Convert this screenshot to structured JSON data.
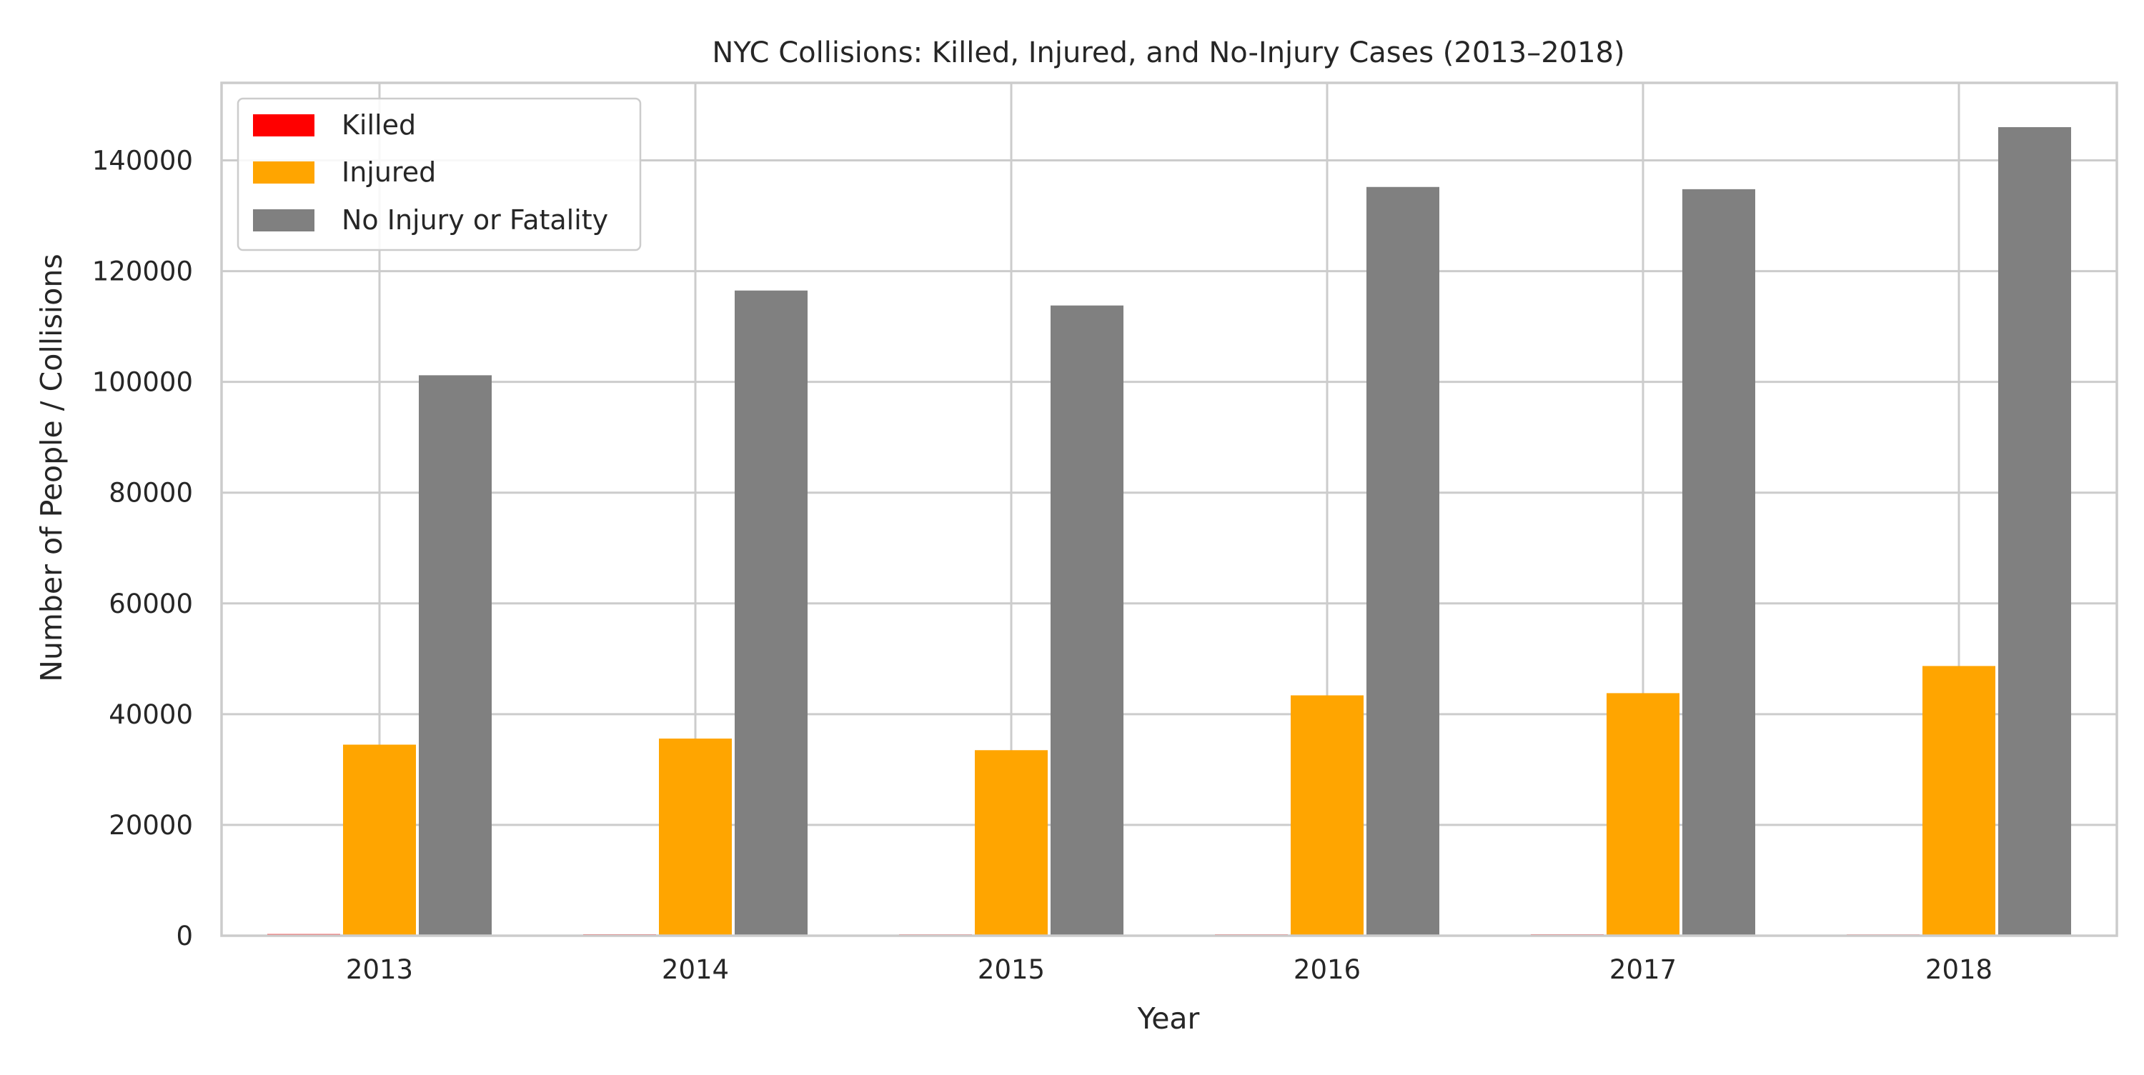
{
  "chart_data": {
    "type": "bar",
    "title": "NYC Collisions: Killed, Injured, and No-Injury Cases (2013–2018)",
    "xlabel": "Year",
    "ylabel": "Number of People / Collisions",
    "categories": [
      "2013",
      "2014",
      "2015",
      "2016",
      "2017",
      "2018"
    ],
    "series": [
      {
        "name": "Killed",
        "color": "#ff0000",
        "values": [
          297,
          262,
          243,
          246,
          256,
          231
        ]
      },
      {
        "name": "Injured",
        "color": "#ffa500",
        "values": [
          34500,
          35600,
          33500,
          43400,
          43800,
          48700
        ]
      },
      {
        "name": "No Injury or Fatality",
        "color": "#808080",
        "values": [
          101200,
          116500,
          113800,
          135200,
          134800,
          146000
        ]
      }
    ],
    "ylim": [
      0,
      154000
    ],
    "yticks": [
      0,
      20000,
      40000,
      60000,
      80000,
      100000,
      120000,
      140000
    ],
    "grid": true,
    "legend_position": "top-left"
  }
}
